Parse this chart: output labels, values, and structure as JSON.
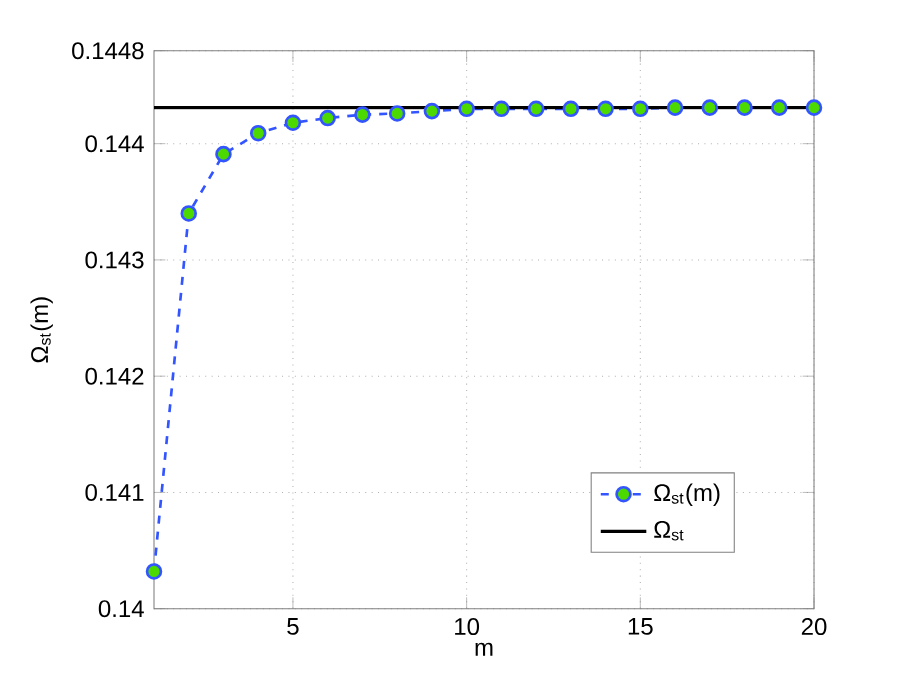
{
  "chart_data": {
    "type": "line",
    "xlabel": "m",
    "ylabel": "Ω$_{st}$(m)",
    "x": [
      1,
      2,
      3,
      4,
      5,
      6,
      7,
      8,
      9,
      10,
      11,
      12,
      13,
      14,
      15,
      16,
      17,
      18,
      19,
      20
    ],
    "series": [
      {
        "name": "Ω$_{st}$(m)",
        "color": "#3355ff",
        "values": [
          0.14032,
          0.1434,
          0.14391,
          0.14409,
          0.14418,
          0.14422,
          0.14425,
          0.14426,
          0.14428,
          0.1443,
          0.1443,
          0.1443,
          0.1443,
          0.1443,
          0.1443,
          0.14431,
          0.14431,
          0.14431,
          0.14431,
          0.14431
        ]
      }
    ],
    "ref_lines": [
      {
        "axis": "y",
        "value": 0.14431,
        "label": "Ω$_{st}$",
        "color": "#000000",
        "line_style": "solid"
      }
    ],
    "xlim": [
      1,
      20
    ],
    "ylim": [
      0.14,
      0.1448
    ],
    "xticks": [
      5,
      10,
      15,
      20
    ],
    "yticks": [
      0.14,
      0.141,
      0.142,
      0.143,
      0.144,
      0.1448
    ],
    "grid": true,
    "legend": "bottom right",
    "marker": "circle",
    "line_style": "dashed"
  }
}
